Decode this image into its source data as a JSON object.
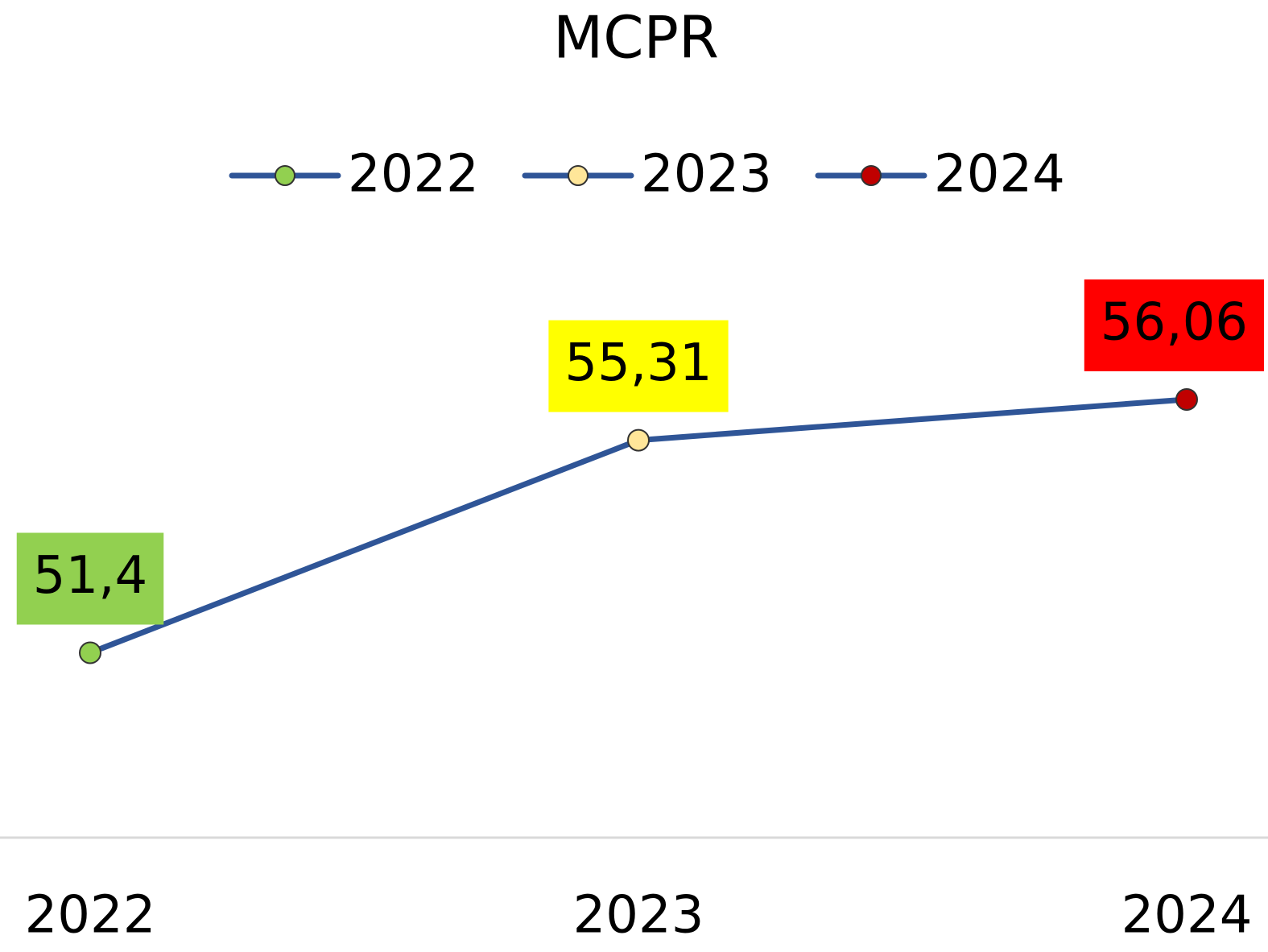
{
  "chart_data": {
    "type": "line",
    "title": "MCPR",
    "categories": [
      "2022",
      "2023",
      "2024"
    ],
    "values": [
      51.4,
      55.31,
      56.06
    ],
    "value_labels": [
      "51,4",
      "55,31",
      "56,06"
    ],
    "color": "#2f5597",
    "point_colors": [
      "#92d050",
      "#ffe699",
      "#c00000"
    ],
    "label_colors": [
      "#92d050",
      "#ffff00",
      "#ff0000"
    ],
    "ylim": [
      48,
      58
    ],
    "legend": "top"
  }
}
